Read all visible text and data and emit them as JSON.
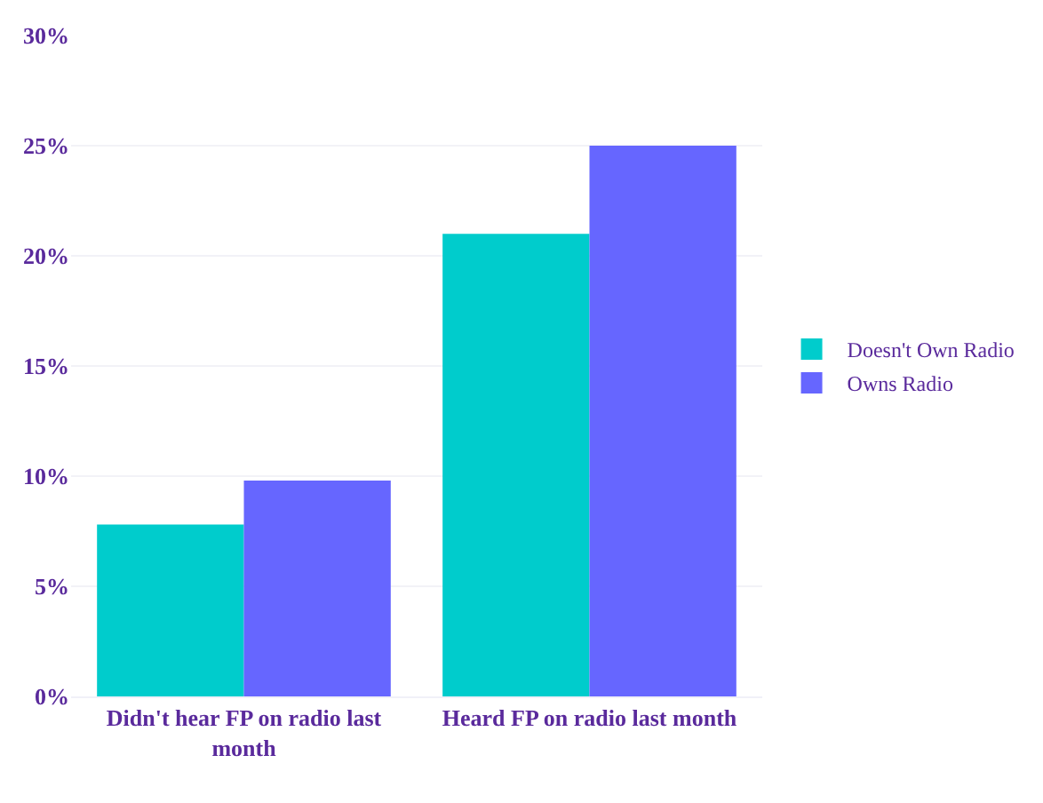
{
  "chart_data": {
    "type": "bar",
    "categories": [
      "Didn't hear FP on radio last month",
      "Heard FP on radio last month"
    ],
    "series": [
      {
        "name": "Doesn't Own Radio",
        "color": "#00cccc",
        "values": [
          7.8,
          21
        ]
      },
      {
        "name": "Owns Radio",
        "color": "#6666ff",
        "values": [
          9.8,
          25
        ]
      }
    ],
    "ylim": [
      0,
      30
    ],
    "yticks": [
      {
        "value": 0,
        "label": "0%"
      },
      {
        "value": 5,
        "label": "5%"
      },
      {
        "value": 10,
        "label": "10%"
      },
      {
        "value": 15,
        "label": "15%"
      },
      {
        "value": 20,
        "label": "20%"
      },
      {
        "value": 25,
        "label": "25%"
      },
      {
        "value": 30,
        "label": "30%"
      }
    ],
    "grid": "y",
    "legend": "right"
  }
}
